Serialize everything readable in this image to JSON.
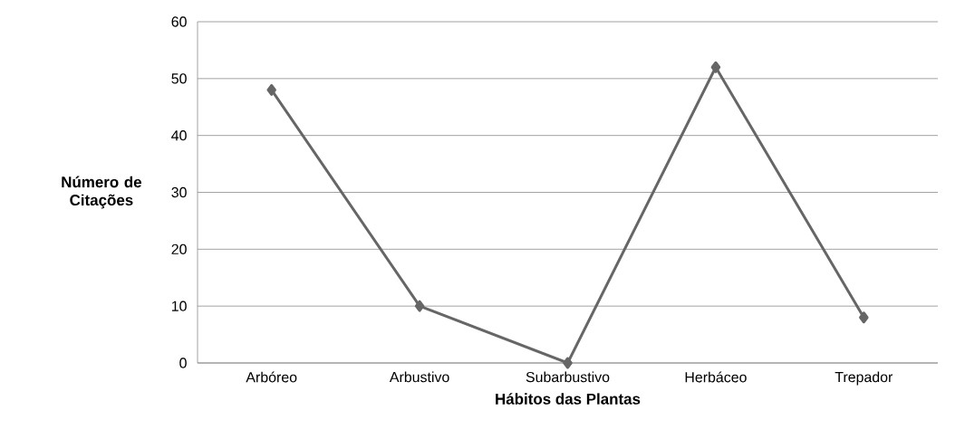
{
  "chart_data": {
    "type": "line",
    "xlabel": "Hábitos das Plantas",
    "ylabel": "Número de Citações",
    "categories": [
      "Arbóreo",
      "Arbustivo",
      "Subarbustivo",
      "Herbáceo",
      "Trepador"
    ],
    "values": [
      48,
      10,
      0,
      52,
      8
    ],
    "color": "#666666",
    "marker": "diamond",
    "grid": "y",
    "ylim": [
      0,
      60
    ],
    "yticks": [
      0,
      10,
      20,
      30,
      40,
      50,
      60
    ]
  }
}
